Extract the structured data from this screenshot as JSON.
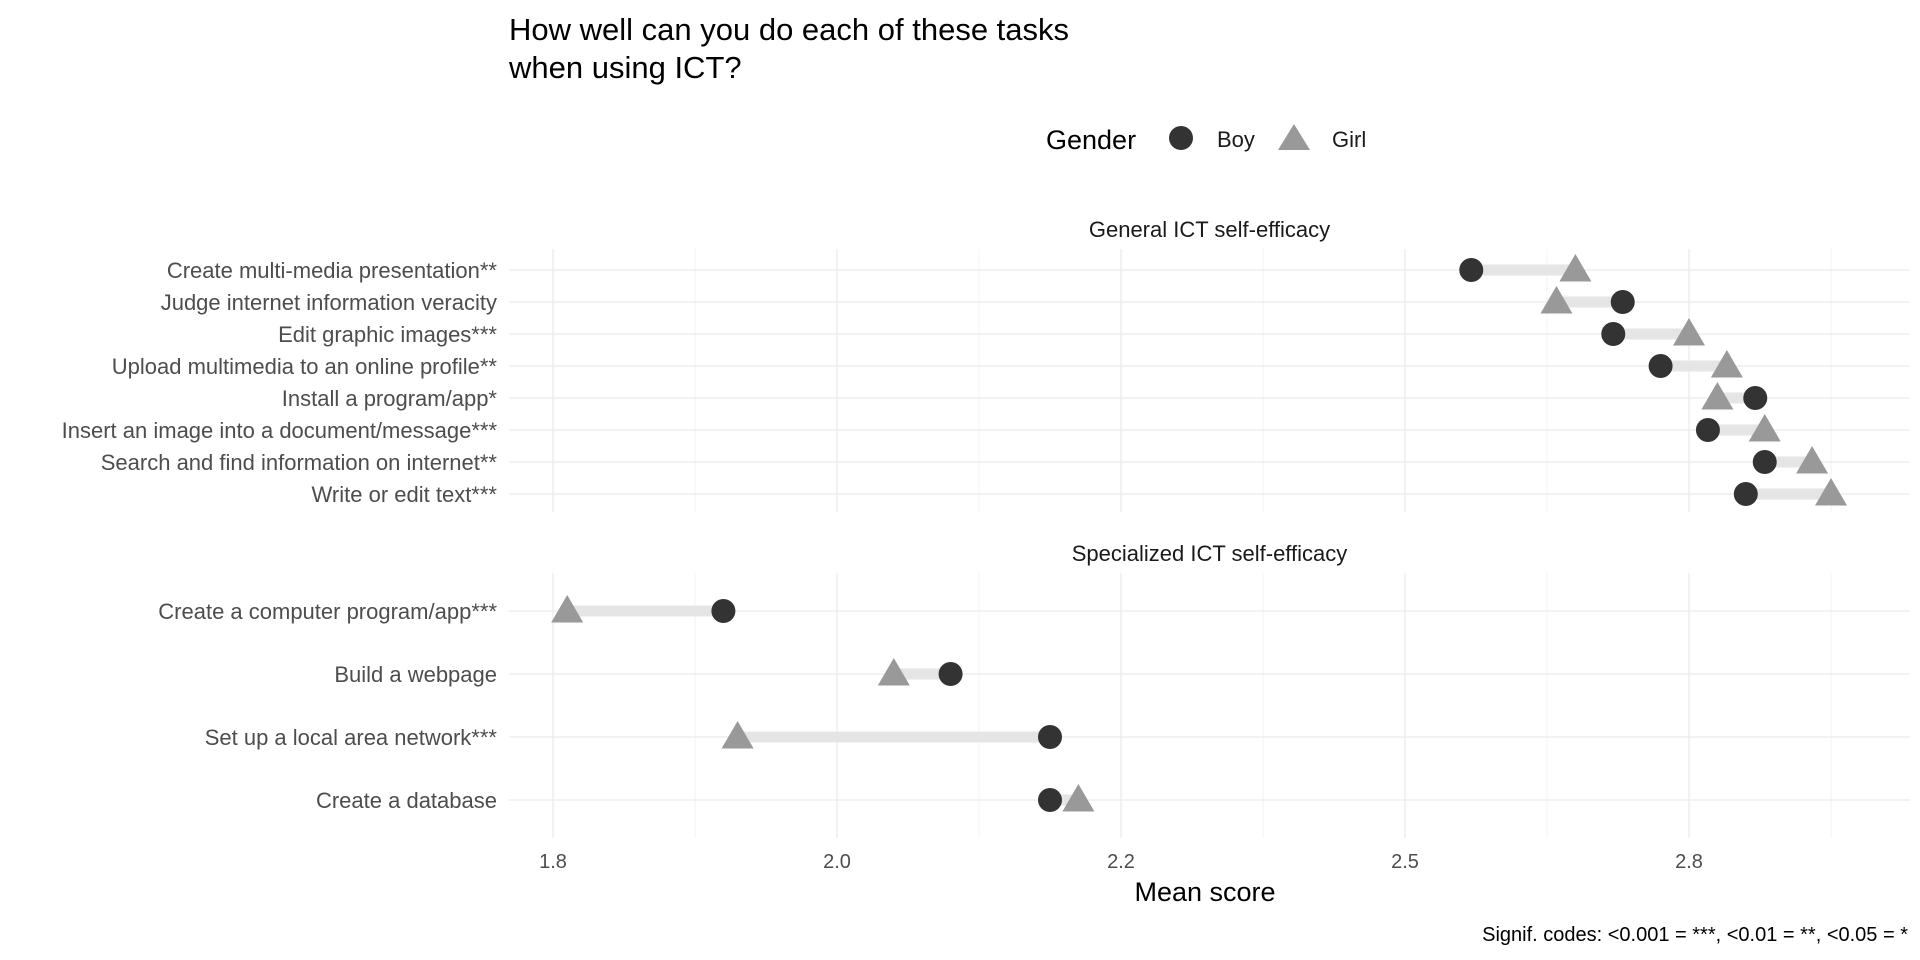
{
  "chart_data": {
    "type": "scatter",
    "subtype": "dumbbell",
    "title_lines": [
      "How well can you do each of these tasks",
      "when using ICT?"
    ],
    "xlabel": "Mean score",
    "caption": "Signif. codes: <0.001 = ***, <0.01 = **, <0.05 = *",
    "legend": {
      "title": "Gender",
      "position": "top",
      "entries": [
        {
          "name": "Boy",
          "shape": "circle",
          "color": "#333333"
        },
        {
          "name": "Girl",
          "shape": "triangle",
          "color": "#999999"
        }
      ]
    },
    "x_ticks": [
      {
        "value": 1.8,
        "label": "1.8"
      },
      {
        "value": 2.0,
        "label": "2.0"
      },
      {
        "value": 2.2,
        "label": "2.2"
      },
      {
        "value": 2.5,
        "label": "2.5"
      },
      {
        "value": 2.8,
        "label": "2.8"
      }
    ],
    "grid": true,
    "colors": {
      "boy": "#333333",
      "girl": "#999999",
      "segment": "#e5e5e5"
    },
    "panels": [
      {
        "strip": "General ICT self-efficacy",
        "rows": [
          {
            "label": "Create multi-media presentation**",
            "boy": 2.57,
            "girl": 2.68
          },
          {
            "label": "Judge internet information veracity",
            "boy": 2.73,
            "girl": 2.66
          },
          {
            "label": "Edit graphic images***",
            "boy": 2.72,
            "girl": 2.8
          },
          {
            "label": "Upload multimedia to an online profile**",
            "boy": 2.77,
            "girl": 2.84
          },
          {
            "label": "Install a program/app*",
            "boy": 2.87,
            "girl": 2.83
          },
          {
            "label": "Insert an image into a document/message***",
            "boy": 2.82,
            "girl": 2.88
          },
          {
            "label": "Search and find information on internet**",
            "boy": 2.88,
            "girl": 2.93
          },
          {
            "label": "Write or edit text***",
            "boy": 2.86,
            "girl": 2.95
          }
        ]
      },
      {
        "strip": "Specialized ICT self-efficacy",
        "rows": [
          {
            "label": "Create a computer program/app***",
            "boy": 1.92,
            "girl": 1.81
          },
          {
            "label": "Build a webpage",
            "boy": 2.08,
            "girl": 2.04
          },
          {
            "label": "Set up a local area network***",
            "boy": 2.15,
            "girl": 1.93
          },
          {
            "label": "Create a database",
            "boy": 2.15,
            "girl": 2.17
          }
        ]
      }
    ]
  }
}
